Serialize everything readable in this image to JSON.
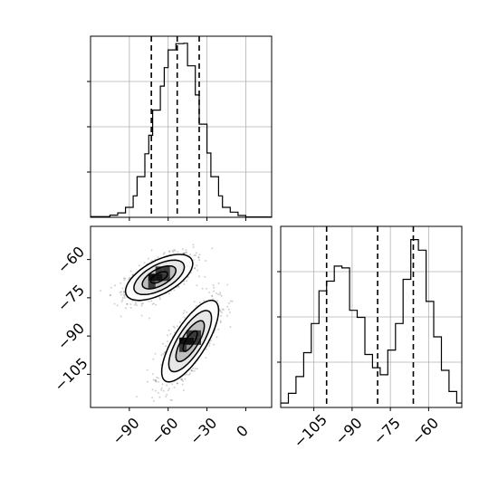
{
  "chart_data": [
    {
      "type": "histogram",
      "panel": "marginal-x",
      "xlim": [
        -120,
        20
      ],
      "grid": true,
      "bins": [
        {
          "x": -120,
          "count": 0.002
        },
        {
          "x": -114,
          "count": 0.002
        },
        {
          "x": -105,
          "count": 0.006
        },
        {
          "x": -99,
          "count": 0.012
        },
        {
          "x": -93,
          "count": 0.027
        },
        {
          "x": -87,
          "count": 0.058
        },
        {
          "x": -84,
          "count": 0.11
        },
        {
          "x": -78,
          "count": 0.172
        },
        {
          "x": -75,
          "count": 0.222
        },
        {
          "x": -72,
          "count": 0.29
        },
        {
          "x": -66,
          "count": 0.355
        },
        {
          "x": -63,
          "count": 0.405
        },
        {
          "x": -60,
          "count": 0.453
        },
        {
          "x": -54,
          "count": 0.47
        },
        {
          "x": -48,
          "count": 0.471
        },
        {
          "x": -45,
          "count": 0.41
        },
        {
          "x": -39,
          "count": 0.331
        },
        {
          "x": -36,
          "count": 0.252
        },
        {
          "x": -30,
          "count": 0.174
        },
        {
          "x": -27,
          "count": 0.11
        },
        {
          "x": -21,
          "count": 0.058
        },
        {
          "x": -18,
          "count": 0.027
        },
        {
          "x": -12,
          "count": 0.014
        },
        {
          "x": -6,
          "count": 0.005
        },
        {
          "x": 0,
          "count": 0.001
        }
      ],
      "quantiles": [
        -73,
        -53,
        -36
      ],
      "ylim": [
        0,
        0.49
      ]
    },
    {
      "type": "scatter",
      "panel": "joint",
      "xlim": [
        -120,
        20
      ],
      "ylim": [
        -118,
        -47
      ],
      "x_ticks": [
        "−90",
        "−60",
        "−30",
        "0"
      ],
      "x_tick_values": [
        -90,
        -60,
        -30,
        0
      ],
      "y_ticks": [
        "−60",
        "−75",
        "−90",
        "−105"
      ],
      "y_tick_values": [
        -60,
        -75,
        -90,
        -105
      ],
      "clusters": [
        {
          "center_x": -67,
          "center_y": -67,
          "sigma_x": 13,
          "sigma_y": 4.5,
          "rho": 0.6
        },
        {
          "center_x": -43,
          "center_y": -92,
          "sigma_x": 11,
          "sigma_y": 8,
          "rho": 0.75
        }
      ],
      "contour_levels_sigma": [
        0.5,
        1.0,
        1.5,
        2.0
      ]
    },
    {
      "type": "histogram",
      "panel": "marginal-y",
      "xlim": [
        -118,
        -47
      ],
      "x_ticks": [
        "−105",
        "−90",
        "−75",
        "−60"
      ],
      "x_tick_values": [
        -105,
        -90,
        -75,
        -60
      ],
      "grid": true,
      "bins": [
        {
          "x": -118,
          "count": 0.005
        },
        {
          "x": -115,
          "count": 0.016
        },
        {
          "x": -112,
          "count": 0.035
        },
        {
          "x": -109,
          "count": 0.062
        },
        {
          "x": -106,
          "count": 0.095
        },
        {
          "x": -103,
          "count": 0.132
        },
        {
          "x": -100,
          "count": 0.143
        },
        {
          "x": -97,
          "count": 0.16
        },
        {
          "x": -94,
          "count": 0.158
        },
        {
          "x": -91,
          "count": 0.11
        },
        {
          "x": -88,
          "count": 0.102
        },
        {
          "x": -85,
          "count": 0.06
        },
        {
          "x": -82,
          "count": 0.045
        },
        {
          "x": -79,
          "count": 0.037
        },
        {
          "x": -76,
          "count": 0.065
        },
        {
          "x": -73,
          "count": 0.095
        },
        {
          "x": -70,
          "count": 0.145
        },
        {
          "x": -67,
          "count": 0.19
        },
        {
          "x": -64,
          "count": 0.178
        },
        {
          "x": -61,
          "count": 0.12
        },
        {
          "x": -58,
          "count": 0.08
        },
        {
          "x": -55,
          "count": 0.042
        },
        {
          "x": -52,
          "count": 0.018
        },
        {
          "x": -49,
          "count": 0.005
        }
      ],
      "quantiles": [
        -100,
        -80,
        -66
      ],
      "ylim": [
        0,
        0.205
      ]
    }
  ]
}
